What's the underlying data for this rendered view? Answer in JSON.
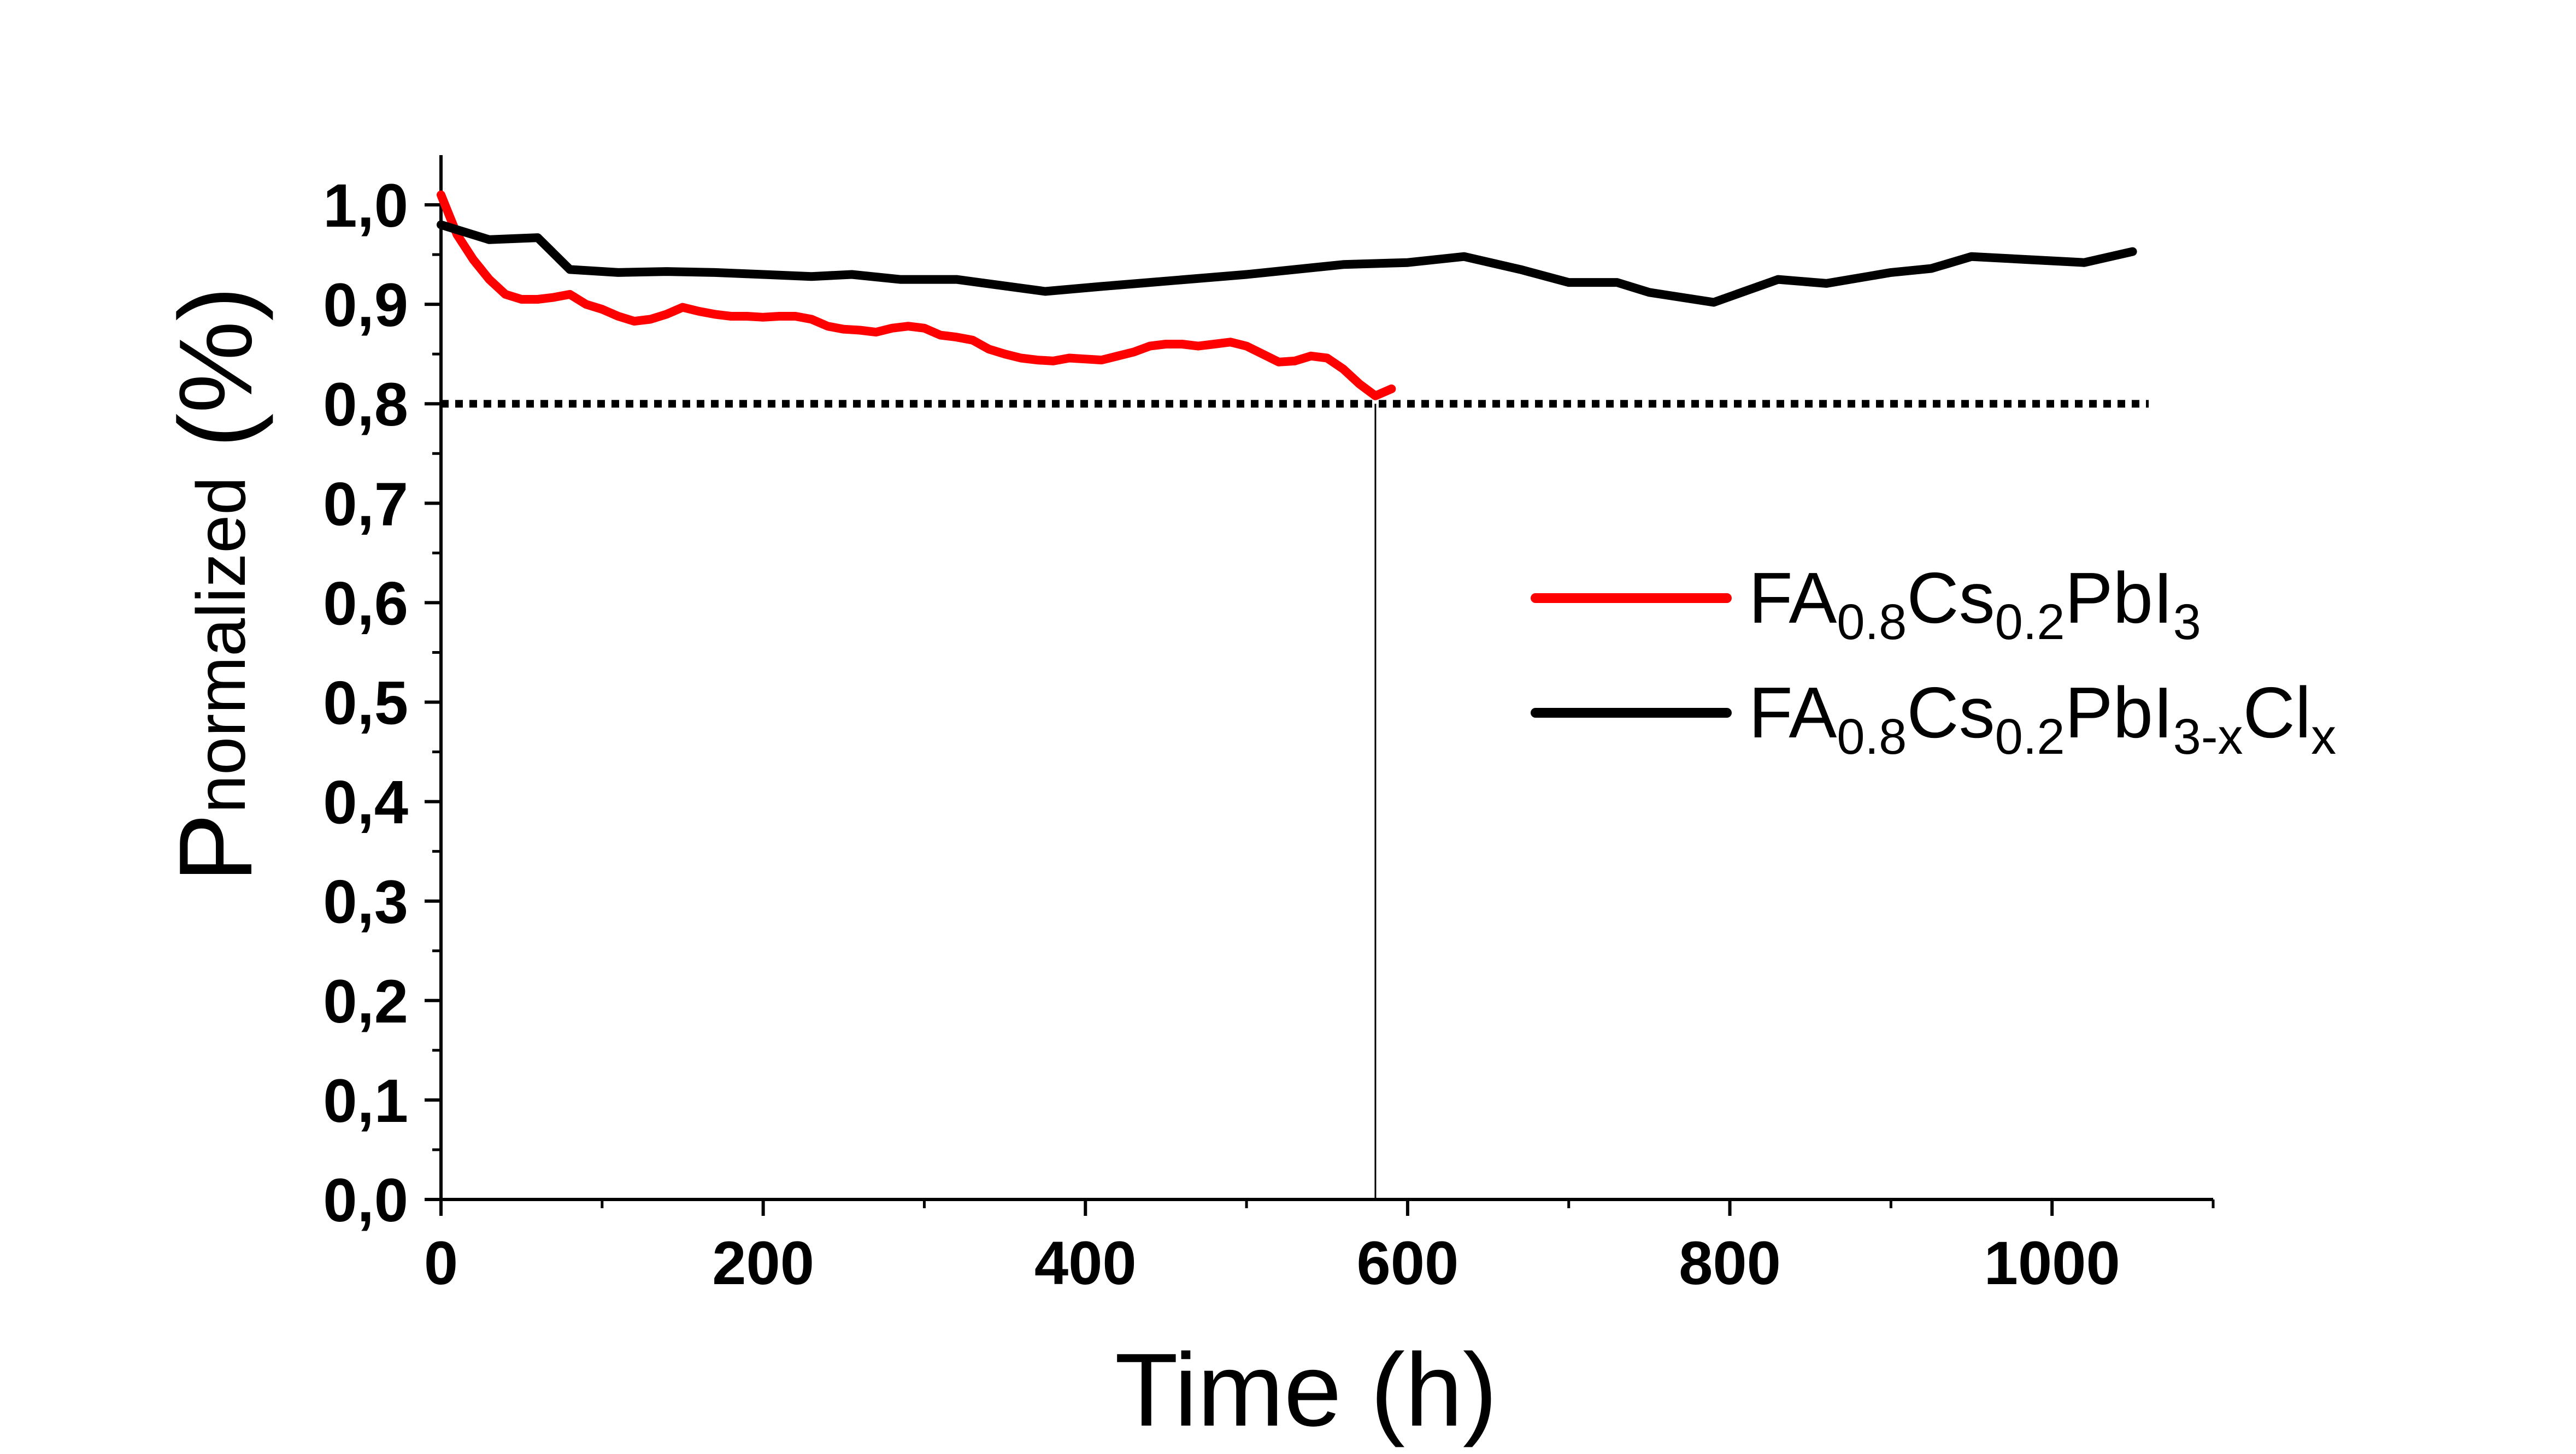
{
  "chart_data": {
    "type": "line",
    "title": "",
    "xlabel": "Time (h)",
    "ylabel": {
      "main": "P",
      "sub": "normalized",
      "suffix": " (%)"
    },
    "xlim": [
      0,
      1100
    ],
    "ylim": [
      0,
      1.05
    ],
    "x_ticks": [
      0,
      200,
      400,
      600,
      800,
      1000
    ],
    "x_tick_labels": [
      "0",
      "200",
      "400",
      "600",
      "800",
      "1000"
    ],
    "y_ticks": [
      0,
      0.1,
      0.2,
      0.3,
      0.4,
      0.5,
      0.6,
      0.7,
      0.8,
      0.9,
      1.0
    ],
    "y_tick_labels": [
      "0,0",
      "0,1",
      "0,2",
      "0,3",
      "0,4",
      "0,5",
      "0,6",
      "0,7",
      "0,8",
      "0,9",
      "1,0"
    ],
    "grid": false,
    "legend_position": "right",
    "reference_line": {
      "y": 0.8,
      "style": "dotted",
      "color": "#000000"
    },
    "marker_line": {
      "x": 580,
      "style": "solid",
      "color": "#000000"
    },
    "series": [
      {
        "name": "FA0.8Cs0.2PbI3",
        "legend_parts": [
          {
            "t": "FA",
            "sub": false
          },
          {
            "t": "0.8",
            "sub": true
          },
          {
            "t": "Cs",
            "sub": false
          },
          {
            "t": "0.2",
            "sub": true
          },
          {
            "t": "PbI",
            "sub": false
          },
          {
            "t": "3",
            "sub": true
          }
        ],
        "color": "#ff0000",
        "x": [
          0,
          5,
          10,
          20,
          30,
          40,
          50,
          60,
          70,
          80,
          90,
          100,
          110,
          120,
          130,
          140,
          150,
          160,
          170,
          180,
          190,
          200,
          210,
          220,
          230,
          240,
          250,
          260,
          270,
          280,
          290,
          300,
          310,
          320,
          330,
          340,
          350,
          360,
          370,
          380,
          390,
          400,
          410,
          420,
          430,
          440,
          450,
          460,
          470,
          480,
          490,
          500,
          510,
          520,
          530,
          540,
          550,
          560,
          570,
          580,
          590
        ],
        "y": [
          1.01,
          0.99,
          0.97,
          0.945,
          0.925,
          0.91,
          0.905,
          0.905,
          0.907,
          0.91,
          0.9,
          0.895,
          0.888,
          0.883,
          0.885,
          0.89,
          0.897,
          0.893,
          0.89,
          0.888,
          0.888,
          0.887,
          0.888,
          0.888,
          0.885,
          0.878,
          0.875,
          0.874,
          0.872,
          0.876,
          0.878,
          0.876,
          0.869,
          0.867,
          0.864,
          0.855,
          0.85,
          0.846,
          0.844,
          0.843,
          0.846,
          0.845,
          0.844,
          0.848,
          0.852,
          0.858,
          0.86,
          0.86,
          0.858,
          0.86,
          0.862,
          0.858,
          0.85,
          0.842,
          0.843,
          0.848,
          0.846,
          0.835,
          0.82,
          0.808,
          0.815
        ]
      },
      {
        "name": "FA0.8Cs0.2PbI3-xClx",
        "legend_parts": [
          {
            "t": "FA",
            "sub": false
          },
          {
            "t": "0.8",
            "sub": true
          },
          {
            "t": "Cs",
            "sub": false
          },
          {
            "t": "0.2",
            "sub": true
          },
          {
            "t": "PbI",
            "sub": false
          },
          {
            "t": "3-x",
            "sub": true
          },
          {
            "t": "Cl",
            "sub": false
          },
          {
            "t": "x",
            "sub": true
          }
        ],
        "color": "#000000",
        "x": [
          0,
          30,
          60,
          80,
          110,
          140,
          170,
          200,
          230,
          255,
          285,
          320,
          375,
          410,
          440,
          500,
          560,
          600,
          635,
          670,
          700,
          730,
          750,
          790,
          830,
          860,
          900,
          925,
          950,
          985,
          1020,
          1050
        ],
        "y": [
          0.98,
          0.965,
          0.967,
          0.935,
          0.932,
          0.933,
          0.932,
          0.93,
          0.928,
          0.93,
          0.925,
          0.925,
          0.913,
          0.918,
          0.922,
          0.93,
          0.94,
          0.942,
          0.948,
          0.935,
          0.922,
          0.922,
          0.912,
          0.902,
          0.925,
          0.921,
          0.932,
          0.936,
          0.948,
          0.945,
          0.942,
          0.953
        ]
      }
    ]
  }
}
